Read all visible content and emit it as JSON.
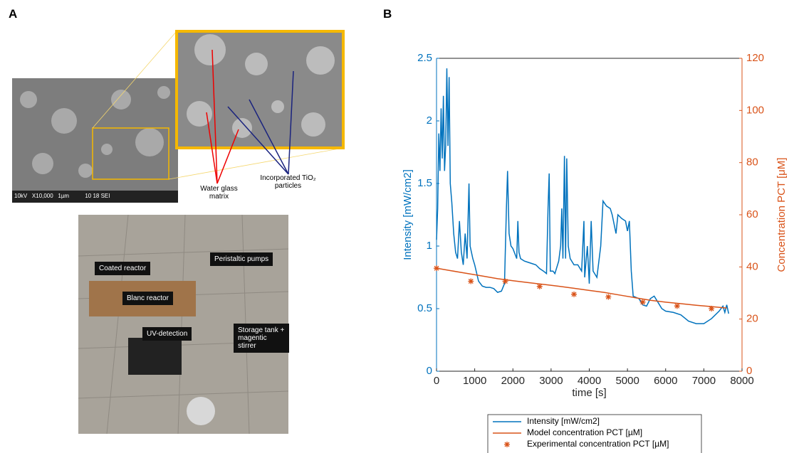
{
  "panel_labels": [
    "A",
    "B"
  ],
  "panel_a": {
    "sem_caption": "10kV   X10,000   1µm          10 18 SEI",
    "sem_annotations": [
      "Water glass matrix",
      "Incorporated TiO₂ particles"
    ],
    "photo_labels": [
      "Coated reactor",
      "Peristaltic pumps",
      "Blanc reactor",
      "UV-detection",
      "Storage tank + magentic stirrer"
    ]
  },
  "chart_data": {
    "type": "line",
    "xlabel": "time [s]",
    "ylabel": "Intensity [mW/cm2]",
    "y2label": "Concentration PCT [μM]",
    "xlim": [
      0,
      8000
    ],
    "xticks": [
      0,
      1000,
      2000,
      3000,
      4000,
      5000,
      6000,
      7000,
      8000
    ],
    "ylim": [
      0,
      2.5
    ],
    "yticks": [
      0,
      0.5,
      1,
      1.5,
      2,
      2.5
    ],
    "y2lim": [
      0,
      120
    ],
    "y2ticks": [
      0,
      20,
      40,
      60,
      80,
      100,
      120
    ],
    "ycolor": "#0072BD",
    "y2color": "#D95319",
    "series": [
      {
        "name": "Intensity [mW/cm2]",
        "color": "#0072BD",
        "axis": "y",
        "style": "line",
        "x": [
          0,
          30,
          60,
          90,
          120,
          150,
          180,
          210,
          240,
          270,
          300,
          330,
          360,
          400,
          450,
          500,
          550,
          600,
          650,
          700,
          750,
          800,
          850,
          880,
          950,
          1000,
          1100,
          1200,
          1300,
          1400,
          1500,
          1600,
          1700,
          1780,
          1830,
          1860,
          1900,
          1950,
          2000,
          2100,
          2130,
          2160,
          2200,
          2300,
          2400,
          2500,
          2600,
          2700,
          2800,
          2880,
          2920,
          2950,
          2980,
          3050,
          3100,
          3200,
          3250,
          3280,
          3310,
          3350,
          3380,
          3410,
          3450,
          3500,
          3600,
          3700,
          3800,
          3860,
          3880,
          3950,
          4000,
          4050,
          4100,
          4200,
          4300,
          4360,
          4450,
          4550,
          4600,
          4700,
          4750,
          4850,
          4950,
          5000,
          5050,
          5100,
          5150,
          5300,
          5400,
          5500,
          5600,
          5700,
          5800,
          5900,
          6000,
          6200,
          6400,
          6600,
          6800,
          7000,
          7200,
          7400,
          7500,
          7550,
          7600,
          7650
        ],
        "values": [
          1.05,
          1.3,
          1.9,
          1.6,
          2.1,
          1.7,
          2.2,
          1.6,
          1.8,
          2.42,
          1.8,
          2.35,
          1.5,
          1.35,
          1.1,
          0.95,
          0.9,
          1.2,
          0.95,
          0.85,
          1.1,
          0.9,
          1.5,
          1.0,
          0.9,
          0.85,
          0.72,
          0.68,
          0.67,
          0.67,
          0.66,
          0.63,
          0.64,
          0.7,
          1.3,
          1.6,
          1.1,
          1.0,
          0.98,
          0.9,
          1.2,
          0.95,
          0.9,
          0.88,
          0.87,
          0.86,
          0.85,
          0.82,
          0.8,
          0.78,
          1.3,
          1.58,
          0.8,
          0.8,
          0.78,
          0.88,
          1.0,
          1.3,
          0.9,
          1.72,
          0.9,
          1.7,
          1.0,
          0.9,
          0.85,
          0.85,
          0.8,
          1.2,
          0.75,
          1.0,
          0.7,
          1.2,
          0.8,
          0.75,
          1.0,
          1.36,
          1.32,
          1.3,
          1.25,
          1.1,
          1.25,
          1.22,
          1.2,
          1.12,
          1.2,
          0.8,
          0.6,
          0.58,
          0.53,
          0.52,
          0.58,
          0.6,
          0.55,
          0.5,
          0.48,
          0.47,
          0.45,
          0.4,
          0.38,
          0.38,
          0.42,
          0.48,
          0.52,
          0.47,
          0.53,
          0.46
        ]
      },
      {
        "name": "Model concentration PCT [µM]",
        "color": "#D95319",
        "axis": "y2",
        "style": "line",
        "x": [
          0,
          400,
          800,
          1200,
          1600,
          2000,
          2400,
          2800,
          3200,
          3600,
          4000,
          4400,
          4800,
          5200,
          5600,
          6000,
          6400,
          6800,
          7200,
          7600
        ],
        "values": [
          39.5,
          38.5,
          37.5,
          36.5,
          35.5,
          34.7,
          34,
          33.3,
          32.6,
          31.8,
          31,
          30.2,
          29.2,
          28.2,
          27.2,
          26.5,
          25.9,
          25.3,
          24.8,
          24.2
        ]
      },
      {
        "name": "Experimental concentration PCT [µM]",
        "color": "#D95319",
        "axis": "y2",
        "style": "marker",
        "x": [
          0,
          900,
          1800,
          2700,
          3600,
          4500,
          5400,
          6300,
          7200
        ],
        "values": [
          39.5,
          34.5,
          34.5,
          32.5,
          29.5,
          28.5,
          26.5,
          25,
          24
        ]
      }
    ]
  }
}
